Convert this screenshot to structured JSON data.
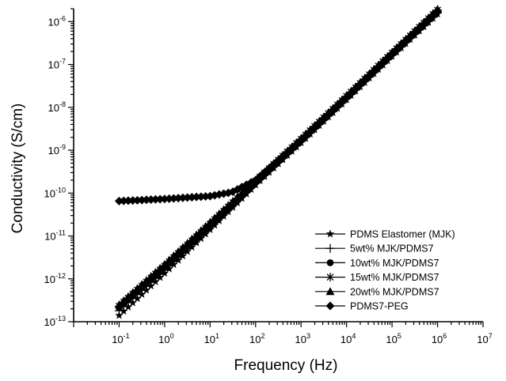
{
  "chart_data": {
    "type": "scatter",
    "xlabel": "Frequency (Hz)",
    "ylabel": "Conductivity (S/cm)",
    "xscale": "log",
    "yscale": "log",
    "xlim": [
      0.01,
      10000000
    ],
    "ylim": [
      1e-13,
      2e-06
    ],
    "x_ticks": [
      {
        "value": 0.1,
        "base": "10",
        "exp": "-1"
      },
      {
        "value": 1,
        "base": "10",
        "exp": "0"
      },
      {
        "value": 10,
        "base": "10",
        "exp": "1"
      },
      {
        "value": 100,
        "base": "10",
        "exp": "2"
      },
      {
        "value": 1000,
        "base": "10",
        "exp": "3"
      },
      {
        "value": 10000,
        "base": "10",
        "exp": "4"
      },
      {
        "value": 100000,
        "base": "10",
        "exp": "5"
      },
      {
        "value": 1000000,
        "base": "10",
        "exp": "6"
      },
      {
        "value": 10000000,
        "base": "10",
        "exp": "7"
      }
    ],
    "y_ticks": [
      {
        "value": 1e-13,
        "base": "10",
        "exp": "-13"
      },
      {
        "value": 1e-12,
        "base": "10",
        "exp": "-12"
      },
      {
        "value": 1e-11,
        "base": "10",
        "exp": "-11"
      },
      {
        "value": 1e-10,
        "base": "10",
        "exp": "-10"
      },
      {
        "value": 1e-09,
        "base": "10",
        "exp": "-9"
      },
      {
        "value": 1e-08,
        "base": "10",
        "exp": "-8"
      },
      {
        "value": 1e-07,
        "base": "10",
        "exp": "-7"
      },
      {
        "value": 1e-06,
        "base": "10",
        "exp": "-6"
      }
    ],
    "grid": false,
    "legend_position": "bottom-right",
    "series": [
      {
        "name": "PDMS Elastomer (MJK)",
        "marker": "star",
        "x_range": [
          0.1,
          1000000
        ],
        "points_per_decade": 10,
        "x": [
          0.1,
          1,
          10,
          100,
          1000,
          10000,
          100000,
          1000000
        ],
        "y": [
          1.4e-13,
          1.35e-12,
          1.4e-11,
          1.55e-10,
          1.5e-09,
          1.5e-08,
          1.55e-07,
          1.5e-06
        ]
      },
      {
        "name": "5wt% MJK/PDMS7",
        "marker": "plus",
        "x_range": [
          0.1,
          1000000
        ],
        "points_per_decade": 10,
        "x": [
          0.1,
          1,
          10,
          100,
          1000,
          10000,
          100000,
          1000000
        ],
        "y": [
          1.8e-13,
          1.6e-12,
          1.6e-11,
          1.7e-10,
          1.6e-09,
          1.6e-08,
          1.65e-07,
          1.6e-06
        ]
      },
      {
        "name": "10wt% MJK/PDMS7",
        "marker": "circle",
        "x_range": [
          0.1,
          1000000
        ],
        "points_per_decade": 10,
        "x": [
          0.1,
          1,
          10,
          100,
          1000,
          10000,
          100000,
          1000000
        ],
        "y": [
          2.1e-13,
          1.8e-12,
          1.75e-11,
          1.8e-10,
          1.7e-09,
          1.7e-08,
          1.75e-07,
          1.75e-06
        ]
      },
      {
        "name": "15wt% MJK/PDMS7",
        "marker": "asterisk",
        "x_range": [
          0.1,
          1000000
        ],
        "points_per_decade": 10,
        "x": [
          0.1,
          1,
          10,
          100,
          1000,
          10000,
          100000,
          1000000
        ],
        "y": [
          2.3e-13,
          2e-12,
          1.9e-11,
          1.9e-10,
          1.8e-09,
          1.8e-08,
          1.85e-07,
          1.85e-06
        ]
      },
      {
        "name": "20wt% MJK/PDMS7",
        "marker": "triangle",
        "x_range": [
          0.1,
          1000000
        ],
        "points_per_decade": 10,
        "x": [
          0.1,
          1,
          10,
          100,
          1000,
          10000,
          100000,
          1000000
        ],
        "y": [
          2.5e-13,
          2.2e-12,
          2.1e-11,
          2e-10,
          1.9e-09,
          1.9e-08,
          1.95e-07,
          1.95e-06
        ]
      },
      {
        "name": "PDMS7-PEG",
        "marker": "diamond",
        "x_range": [
          0.1,
          1000000
        ],
        "points_per_decade": 10,
        "x": [
          0.1,
          1,
          10,
          30,
          100,
          1000,
          10000,
          100000,
          1000000
        ],
        "y": [
          6.5e-11,
          7.3e-11,
          8.5e-11,
          1.05e-10,
          2e-10,
          1.7e-09,
          1.7e-08,
          1.75e-07,
          1.7e-06
        ]
      }
    ]
  }
}
